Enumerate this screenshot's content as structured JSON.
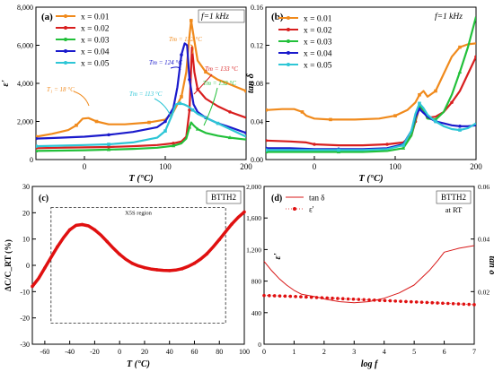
{
  "colors": {
    "x001": "#f08a1c",
    "x002": "#d81e1e",
    "x003": "#22c03a",
    "x004": "#1a1acc",
    "x005": "#2ec6d6",
    "c_line": "#e01010",
    "tan_line": "#d81818",
    "eps_dots": "#e01010"
  },
  "chart_data": [
    {
      "id": "a",
      "type": "line",
      "panel_label": "(a)",
      "freq_label": "f=1 kHz",
      "xlabel": "T (°C)",
      "ylabel": "ε'",
      "xlim": [
        -60,
        200
      ],
      "ylim": [
        0,
        8000
      ],
      "xticks": [
        0,
        100,
        200
      ],
      "yticks": [
        0,
        2000,
        4000,
        6000,
        8000
      ],
      "ytick_labels": [
        "0",
        "2,000",
        "4,000",
        "6,000",
        "8,000"
      ],
      "legend": [
        "x = 0.01",
        "x = 0.02",
        "x = 0.03",
        "x = 0.04",
        "x = 0.05"
      ],
      "annotations": [
        {
          "text": "T₁ = 18 °C",
          "color_key": "x001"
        },
        {
          "text": "Tm = 132 °C",
          "color_key": "x001"
        },
        {
          "text": "Tm = 124 °C",
          "color_key": "x004"
        },
        {
          "text": "Tm = 133 °C",
          "color_key": "x002"
        },
        {
          "text": "Tm = 113 °C",
          "color_key": "x005"
        },
        {
          "text": "Tm = 132 °C",
          "color_key": "x003"
        }
      ],
      "series": [
        {
          "name": "x = 0.01",
          "color_key": "x001",
          "x": [
            -60,
            -40,
            -20,
            -10,
            -2,
            5,
            15,
            30,
            50,
            80,
            100,
            110,
            120,
            126,
            130,
            132,
            135,
            140,
            150,
            165,
            180,
            200
          ],
          "y": [
            1200,
            1350,
            1550,
            1800,
            2150,
            2180,
            2000,
            1850,
            1850,
            1950,
            2100,
            2500,
            3300,
            4600,
            6500,
            7300,
            6500,
            5200,
            4600,
            4200,
            3950,
            3600
          ]
        },
        {
          "name": "x = 0.02",
          "color_key": "x002",
          "x": [
            -60,
            -30,
            0,
            30,
            60,
            90,
            110,
            120,
            126,
            130,
            133,
            136,
            140,
            150,
            165,
            180,
            200
          ],
          "y": [
            600,
            620,
            640,
            660,
            700,
            760,
            850,
            950,
            1200,
            2600,
            5900,
            4600,
            3700,
            3200,
            2800,
            2500,
            2200
          ]
        },
        {
          "name": "x = 0.03",
          "color_key": "x003",
          "x": [
            -60,
            -30,
            0,
            30,
            60,
            90,
            110,
            120,
            126,
            130,
            132,
            135,
            140,
            150,
            165,
            180,
            200
          ],
          "y": [
            450,
            470,
            490,
            520,
            560,
            620,
            720,
            850,
            1100,
            1700,
            1950,
            1800,
            1600,
            1400,
            1250,
            1150,
            1050
          ]
        },
        {
          "name": "x = 0.04",
          "color_key": "x004",
          "x": [
            -60,
            -30,
            0,
            30,
            60,
            90,
            100,
            110,
            115,
            120,
            124,
            127,
            130,
            135,
            140,
            150,
            165,
            180,
            200
          ],
          "y": [
            1100,
            1150,
            1200,
            1300,
            1450,
            1700,
            2000,
            2700,
            3800,
            5500,
            6100,
            6000,
            4200,
            2900,
            2500,
            2200,
            1900,
            1700,
            1400
          ]
        },
        {
          "name": "x = 0.05",
          "color_key": "x005",
          "x": [
            -60,
            -30,
            0,
            30,
            60,
            90,
            100,
            108,
            113,
            118,
            123,
            128,
            134,
            140,
            150,
            165,
            180,
            200
          ],
          "y": [
            700,
            730,
            760,
            800,
            900,
            1150,
            1500,
            2300,
            2900,
            2950,
            2900,
            2800,
            2600,
            2400,
            2200,
            1900,
            1600,
            1200
          ]
        }
      ]
    },
    {
      "id": "b",
      "type": "line",
      "panel_label": "(b)",
      "freq_label": "f=1 kHz",
      "xlabel": "T (°C)",
      "ylabel": "tan δ",
      "xlim": [
        -60,
        200
      ],
      "ylim": [
        0,
        0.16
      ],
      "xticks": [
        0,
        100,
        200
      ],
      "yticks": [
        0.0,
        0.04,
        0.08,
        0.12,
        0.16
      ],
      "ytick_labels": [
        "0.00",
        "0.04",
        "0.08",
        "0.12",
        "0.16"
      ],
      "legend": [
        "x = 0.01",
        "x = 0.02",
        "x = 0.03",
        "x = 0.04",
        "x = 0.05"
      ],
      "series": [
        {
          "name": "x = 0.01",
          "color_key": "x001",
          "x": [
            -60,
            -40,
            -25,
            -15,
            -10,
            0,
            20,
            50,
            80,
            100,
            115,
            125,
            130,
            135,
            140,
            150,
            160,
            170,
            180,
            190,
            200
          ],
          "y": [
            0.052,
            0.053,
            0.053,
            0.05,
            0.046,
            0.043,
            0.042,
            0.042,
            0.043,
            0.046,
            0.052,
            0.06,
            0.068,
            0.072,
            0.066,
            0.072,
            0.09,
            0.108,
            0.118,
            0.121,
            0.122
          ]
        },
        {
          "name": "x = 0.02",
          "color_key": "x002",
          "x": [
            -60,
            -30,
            -10,
            0,
            30,
            60,
            90,
            110,
            120,
            125,
            130,
            135,
            140,
            150,
            160,
            170,
            180,
            190,
            200
          ],
          "y": [
            0.02,
            0.019,
            0.018,
            0.016,
            0.015,
            0.015,
            0.016,
            0.018,
            0.025,
            0.04,
            0.055,
            0.052,
            0.044,
            0.045,
            0.05,
            0.06,
            0.072,
            0.09,
            0.108
          ]
        },
        {
          "name": "x = 0.03",
          "color_key": "x003",
          "x": [
            -60,
            -30,
            0,
            30,
            60,
            90,
            110,
            120,
            125,
            130,
            135,
            140,
            150,
            160,
            170,
            180,
            190,
            200
          ],
          "y": [
            0.008,
            0.008,
            0.008,
            0.008,
            0.008,
            0.009,
            0.012,
            0.025,
            0.042,
            0.057,
            0.052,
            0.043,
            0.042,
            0.05,
            0.068,
            0.092,
            0.118,
            0.15
          ]
        },
        {
          "name": "x = 0.04",
          "color_key": "x004",
          "x": [
            -60,
            -30,
            0,
            30,
            60,
            90,
            110,
            120,
            125,
            130,
            135,
            140,
            150,
            160,
            170,
            180,
            190,
            200
          ],
          "y": [
            0.012,
            0.012,
            0.011,
            0.011,
            0.011,
            0.012,
            0.016,
            0.03,
            0.045,
            0.053,
            0.049,
            0.045,
            0.04,
            0.038,
            0.036,
            0.035,
            0.035,
            0.036
          ]
        },
        {
          "name": "x = 0.05",
          "color_key": "x005",
          "x": [
            -60,
            -30,
            0,
            30,
            60,
            90,
            110,
            120,
            125,
            130,
            135,
            140,
            150,
            160,
            170,
            180,
            190,
            200
          ],
          "y": [
            0.01,
            0.01,
            0.01,
            0.01,
            0.01,
            0.011,
            0.015,
            0.03,
            0.048,
            0.059,
            0.054,
            0.047,
            0.04,
            0.035,
            0.032,
            0.031,
            0.033,
            0.038
          ]
        }
      ]
    },
    {
      "id": "c",
      "type": "line",
      "panel_label": "(c)",
      "material_label": "BTTH2",
      "region_label": "X5S region",
      "xlabel": "T (°C)",
      "ylabel": "ΔC/C_RT (%)",
      "xlim": [
        -70,
        100
      ],
      "ylim": [
        -30,
        30
      ],
      "xticks": [
        -60,
        -40,
        -20,
        0,
        20,
        40,
        60,
        80,
        100
      ],
      "yticks": [
        -30,
        -20,
        -10,
        0,
        10,
        20,
        30
      ],
      "ytick_labels": [
        "-30",
        "-20",
        "-10",
        "0",
        "10",
        "20",
        "30"
      ],
      "region": {
        "xmin": -55,
        "xmax": 85,
        "ymin": -22,
        "ymax": 22
      },
      "series": [
        {
          "name": "ΔC/C_RT",
          "color_key": "c_line",
          "x": [
            -70,
            -65,
            -60,
            -55,
            -50,
            -45,
            -40,
            -35,
            -30,
            -25,
            -20,
            -15,
            -10,
            -5,
            0,
            5,
            10,
            15,
            20,
            25,
            30,
            35,
            40,
            45,
            50,
            55,
            60,
            65,
            70,
            75,
            80,
            85,
            90,
            95,
            100
          ],
          "y": [
            -8,
            -5,
            -1,
            3,
            7,
            10.5,
            13.5,
            15.2,
            15.5,
            15,
            13.5,
            11.5,
            9,
            6.5,
            4.2,
            2.3,
            0.8,
            -0.2,
            -0.9,
            -1.4,
            -1.7,
            -1.9,
            -2,
            -1.8,
            -1.3,
            -0.4,
            0.8,
            2.4,
            4.4,
            7,
            9.8,
            12.8,
            15.7,
            18.2,
            20.3
          ]
        }
      ]
    },
    {
      "id": "d",
      "type": "line",
      "panel_label": "(d)",
      "material_label": "BTTH2",
      "condition_label": "at RT",
      "xlabel": "log f",
      "ylabel_left": "ε'",
      "ylabel_right": "tan δ",
      "xlim": [
        0,
        7
      ],
      "ylim_left": [
        0,
        2000
      ],
      "ylim_right": [
        0,
        0.06
      ],
      "xticks": [
        0,
        1,
        2,
        3,
        4,
        5,
        6,
        7
      ],
      "yticks_left": [
        0,
        400,
        800,
        1200,
        1600,
        2000
      ],
      "ytick_labels_left": [
        "0",
        "400",
        "800",
        "1,200",
        "1,600",
        "2,000"
      ],
      "yticks_right": [
        0.02,
        0.04,
        0.06
      ],
      "ytick_labels_right": [
        "0.02",
        "0.04",
        "0.06"
      ],
      "legend": [
        "tan δ",
        "ε'"
      ],
      "series": [
        {
          "name": "tan δ",
          "axis": "right",
          "color_key": "tan_line",
          "x": [
            0,
            0.25,
            0.5,
            0.75,
            1,
            1.25,
            1.5,
            1.75,
            2,
            2.5,
            3,
            3.5,
            4,
            4.5,
            5,
            5.5,
            5.8,
            6,
            6.5,
            7
          ],
          "y": [
            0.0315,
            0.028,
            0.025,
            0.0225,
            0.0205,
            0.019,
            0.0185,
            0.018,
            0.0172,
            0.0162,
            0.0158,
            0.0162,
            0.0175,
            0.0195,
            0.0225,
            0.028,
            0.032,
            0.035,
            0.0365,
            0.0375
          ]
        },
        {
          "name": "ε'",
          "axis": "left",
          "color_key": "eps_dots",
          "x": [
            0,
            0.175,
            0.35,
            0.525,
            0.7,
            0.875,
            1.05,
            1.225,
            1.4,
            1.575,
            1.75,
            1.925,
            2.1,
            2.275,
            2.45,
            2.625,
            2.8,
            2.975,
            3.15,
            3.325,
            3.5,
            3.675,
            3.85,
            4.025,
            4.2,
            4.375,
            4.55,
            4.725,
            4.9,
            5.075,
            5.25,
            5.425,
            5.6,
            5.775,
            5.95,
            6.125,
            6.3,
            6.475,
            6.65,
            6.825,
            7
          ],
          "y": [
            618,
            616,
            614,
            612,
            610,
            607,
            604,
            601,
            598,
            595,
            592,
            589,
            586,
            583,
            580,
            577,
            574,
            571,
            568,
            565,
            562,
            559,
            556,
            553,
            550,
            547,
            544,
            541,
            538,
            535,
            532,
            529,
            526,
            523,
            520,
            517,
            514,
            511,
            508,
            505,
            502
          ]
        }
      ]
    }
  ]
}
